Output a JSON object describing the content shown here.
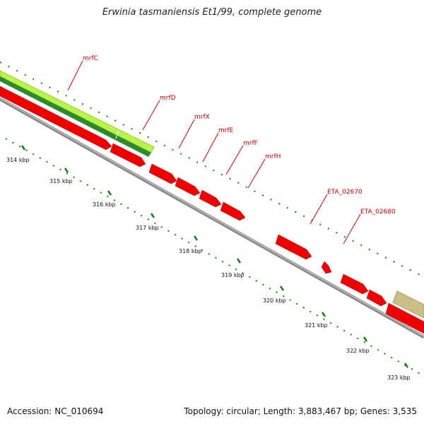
{
  "title": "Erwinia tasmaniensis Et1/99, complete genome",
  "footer": {
    "accession": "Accession: NC_010694",
    "summary": "Topology: circular; Length: 3,883,467 bp; Genes: 3,535"
  },
  "colors": {
    "cds": "#ee0000",
    "backbone": "#8a8a8a",
    "tick": "#1a7a1a",
    "light_green": "#b8f24a",
    "dark_green": "#2e8a2e",
    "khaki": "#c8c088",
    "label": "#cc0000"
  },
  "scale_labels": [
    "314 kbp",
    "315 kbp",
    "316 kbp",
    "317 kbp",
    "318 kbp",
    "319 kbp",
    "320 kbp",
    "321 kbp",
    "322 kbp",
    "323 kbp"
  ],
  "gene_labels": [
    "mrfC",
    "mrfD",
    "mrfX",
    "mrfE",
    "mrfF",
    "mrfH",
    "ETA_02670",
    "ETA_02680"
  ]
}
